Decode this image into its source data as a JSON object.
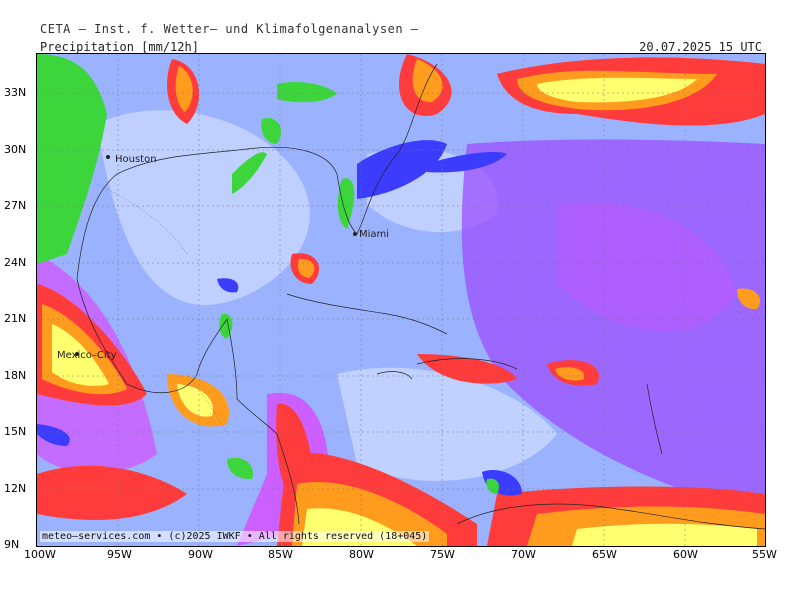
{
  "header": {
    "institute": "CETA – Inst. f. Wetter– und Klimafolgenanalysen –",
    "parameter": "Precipitation [mm/12h]",
    "datetime": "20.07.2025 15 UTC"
  },
  "map": {
    "cities": [
      "Houston",
      "Miami",
      "Mexico–City"
    ],
    "lat_labels": [
      "33N",
      "30N",
      "27N",
      "24N",
      "21N",
      "18N",
      "15N",
      "12N",
      "9N"
    ],
    "lon_labels": [
      "100W",
      "95W",
      "90W",
      "85W",
      "80W",
      "75W",
      "70W",
      "65W",
      "60W",
      "55W"
    ],
    "colors": {
      "background_light": "#9bb3ff",
      "light_blue": "#c8d6ff",
      "mid_blue": "#7f97ff",
      "dark_blue": "#3c3cff",
      "purple": "#9b4dff",
      "magenta": "#e03cff",
      "red": "#ff3b3b",
      "orange": "#ff9c1e",
      "yellow": "#ffff70",
      "green": "#3cd63c"
    }
  },
  "footer": {
    "credit": "meteo–services.com • (c)2025 IWKF • All rights reserved (18+045)"
  }
}
